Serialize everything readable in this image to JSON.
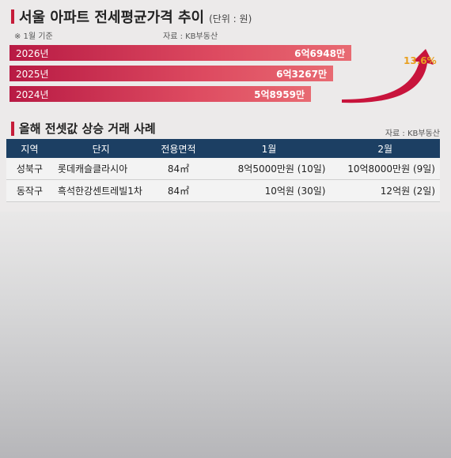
{
  "title": "서울 아파트 전세평균가격 추이",
  "unit": "(단위 : 원)",
  "note": "※ 1월 기준",
  "source_top": "자료 : KB부동산",
  "growth_label": "13.6%",
  "colors": {
    "bar": "#c81f43",
    "header": "#1c3f63",
    "accent": "#c61d3a",
    "growth": "#e8a020"
  },
  "chart_data": {
    "type": "bar",
    "orientation": "horizontal",
    "title": "서울 아파트 전세평균가격 추이",
    "unit": "원",
    "categories": [
      "2026년",
      "2025년",
      "2024년"
    ],
    "values": [
      669480000,
      632670000,
      589590000
    ],
    "value_labels": [
      "6억6948만",
      "6억3267만",
      "5억8959만"
    ],
    "annotation": "13.6%"
  },
  "section2": {
    "title": "올해 전셋값 상승 거래 사례",
    "source": "자료 : KB부동산"
  },
  "table": {
    "headers": [
      "지역",
      "단지",
      "전용면적",
      "1월",
      "2월"
    ],
    "rows": [
      [
        "성북구",
        "롯데캐슬클라시아",
        "84㎡",
        "8억5000만원 (10일)",
        "10억8000만원 (9일)"
      ],
      [
        "동작구",
        "흑석한강센트레빌1차",
        "84㎡",
        "10억원 (30일)",
        "12억원 (2일)"
      ]
    ]
  }
}
